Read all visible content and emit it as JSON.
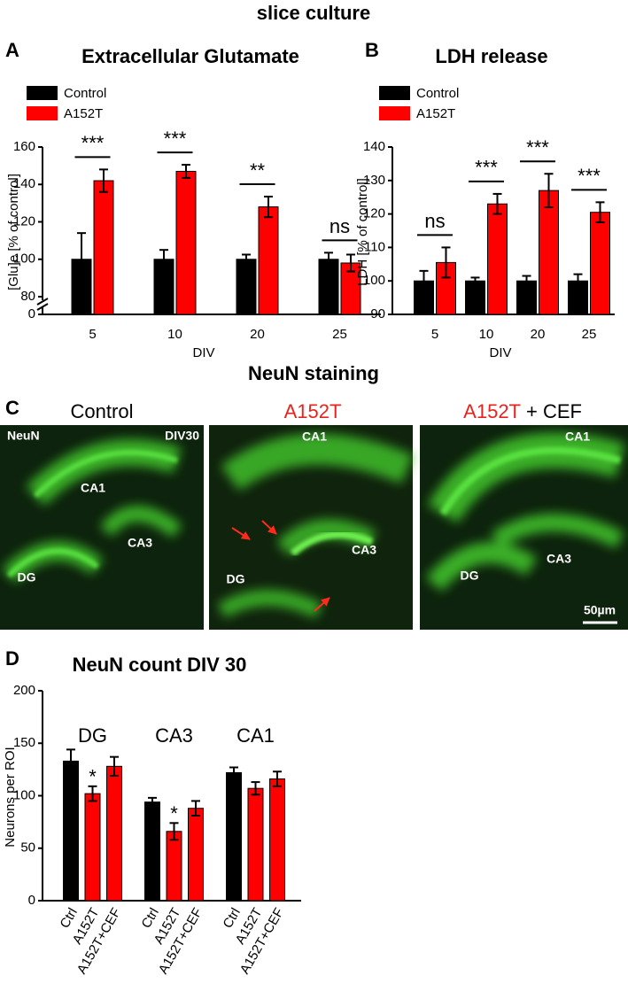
{
  "title": "slice culture",
  "section_title": "NeuN staining",
  "chart_data": [
    {
      "type": "bar",
      "panel": "A",
      "title": "Extracellular Glutamate",
      "x_label": "DIV",
      "y_label": "[Glu]e [% of control]",
      "categories": [
        "5",
        "10",
        "20",
        "25"
      ],
      "series": [
        {
          "name": "Control",
          "color": "#000000",
          "values": [
            100,
            100,
            100,
            100
          ],
          "errors": [
            14,
            5,
            2.5,
            3.5
          ]
        },
        {
          "name": "A152T",
          "color": "#ff0000",
          "values": [
            142,
            147,
            128,
            98
          ],
          "errors": [
            6,
            3.5,
            5.5,
            4.5
          ]
        }
      ],
      "annotations": [
        "***",
        "***",
        "**",
        "ns"
      ],
      "ylim": [
        0,
        160
      ],
      "axis_break": [
        0,
        80
      ],
      "yticks": [
        0,
        80,
        100,
        120,
        140,
        160
      ]
    },
    {
      "type": "bar",
      "panel": "B",
      "title": "LDH release",
      "x_label": "DIV",
      "y_label": "LDH [% of control]",
      "categories": [
        "5",
        "10",
        "20",
        "25"
      ],
      "series": [
        {
          "name": "Control",
          "color": "#000000",
          "values": [
            100,
            100,
            100,
            100
          ],
          "errors": [
            3,
            1,
            1.5,
            2
          ]
        },
        {
          "name": "A152T",
          "color": "#ff0000",
          "values": [
            105.5,
            123,
            127,
            120.5
          ],
          "errors": [
            4.5,
            3,
            5,
            3
          ]
        }
      ],
      "annotations": [
        "ns",
        "***",
        "***",
        "***"
      ],
      "ylim": [
        90,
        140
      ],
      "yticks": [
        90,
        100,
        110,
        120,
        130,
        140
      ]
    },
    {
      "type": "bar",
      "panel": "D",
      "title": "NeuN count DIV 30",
      "y_label": "Neurons per ROI",
      "groups": [
        "DG",
        "CA3",
        "CA1"
      ],
      "categories": [
        "Ctrl",
        "A152T",
        "A152T+CEF",
        "Ctrl",
        "A152T",
        "A152T+CEF",
        "Ctrl",
        "A152T",
        "A152T+CEF"
      ],
      "values": [
        133,
        102,
        128,
        94,
        66,
        88,
        122,
        107,
        116
      ],
      "errors": [
        11,
        7,
        9,
        4,
        8,
        7,
        5,
        6,
        7
      ],
      "colors": [
        "#000000",
        "#ff0000",
        "#ff0000",
        "#000000",
        "#ff0000",
        "#ff0000",
        "#000000",
        "#ff0000",
        "#ff0000"
      ],
      "annotations": [
        null,
        "*",
        null,
        null,
        "*",
        null,
        null,
        null,
        null
      ],
      "ylim": [
        0,
        200
      ],
      "yticks": [
        0,
        50,
        100,
        150,
        200
      ]
    }
  ],
  "panel_c": {
    "panel": "C",
    "columns": [
      {
        "title": "Control"
      },
      {
        "title": "A152T"
      },
      {
        "title": "A152T",
        "suffix": "+ CEF"
      }
    ],
    "images": [
      {
        "labels": [
          "NeuN",
          "DIV30",
          "CA1",
          "CA3",
          "DG"
        ]
      },
      {
        "labels": [
          "CA1",
          "CA3",
          "DG"
        ]
      },
      {
        "labels": [
          "CA1",
          "CA3",
          "DG",
          "50µm"
        ]
      }
    ]
  }
}
